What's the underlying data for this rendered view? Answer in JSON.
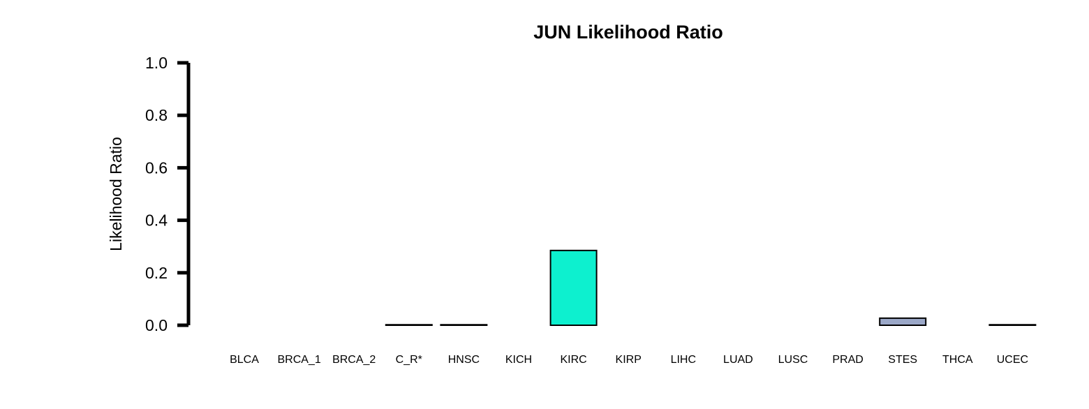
{
  "chart_data": {
    "type": "bar",
    "title": "JUN Likelihood Ratio",
    "xlabel": "",
    "ylabel": "Likelihood Ratio",
    "ylim": [
      0,
      1.0
    ],
    "yticks": [
      "0.0",
      "0.2",
      "0.4",
      "0.6",
      "0.8",
      "1.0"
    ],
    "categories": [
      "BLCA",
      "BRCA_1",
      "BRCA_2",
      "C_R*",
      "HNSC",
      "KICH",
      "KIRC",
      "KIRP",
      "LIHC",
      "LUAD",
      "LUSC",
      "PRAD",
      "STES",
      "THCA",
      "UCEC"
    ],
    "values": [
      0.0,
      0.0,
      0.0,
      0.002,
      0.002,
      0.0,
      0.285,
      0.0,
      0.0,
      0.0,
      0.0,
      0.0,
      0.027,
      0.0,
      0.002
    ],
    "colors": [
      "#ffffff",
      "#ffffff",
      "#ffffff",
      "#ffffff",
      "#ffffff",
      "#ffffff",
      "#0df0cf",
      "#ffffff",
      "#ffffff",
      "#ffffff",
      "#ffffff",
      "#ffffff",
      "#9ba8c8",
      "#ffffff",
      "#ffffff"
    ],
    "grid": false,
    "legend": "none"
  }
}
